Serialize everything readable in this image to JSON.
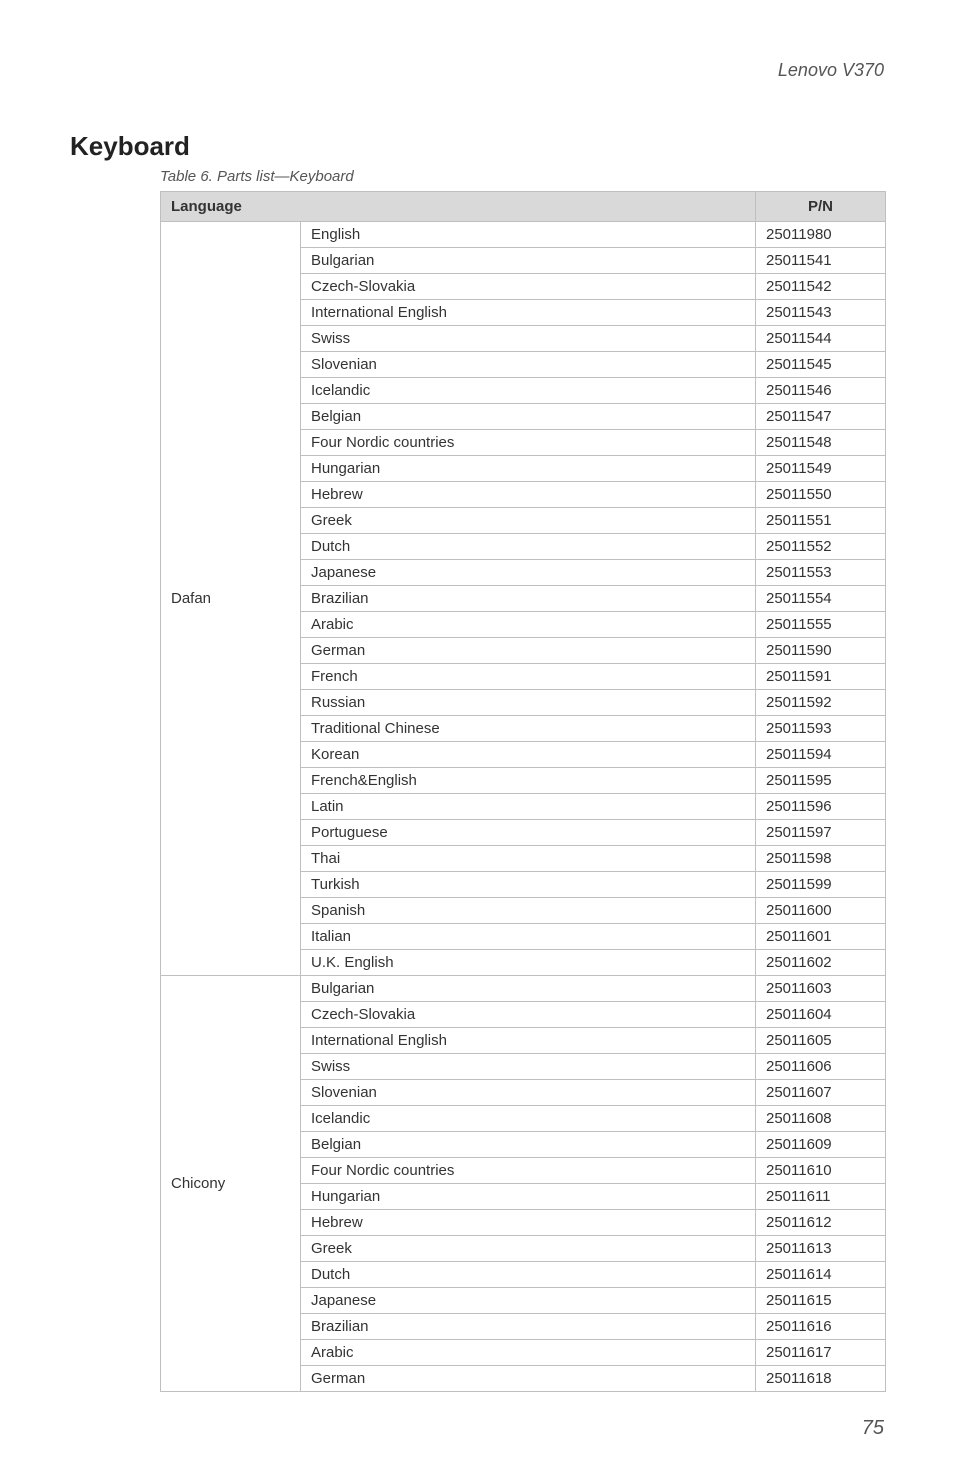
{
  "doc_header": "Lenovo V370",
  "section_title": "Keyboard",
  "table_caption": "Table 6. Parts list—Keyboard",
  "columns": {
    "language": "Language",
    "pn": "P/N"
  },
  "groups": [
    {
      "brand": "Dafan",
      "rows": [
        {
          "lang": "English",
          "pn": "25011980"
        },
        {
          "lang": "Bulgarian",
          "pn": "25011541"
        },
        {
          "lang": "Czech-Slovakia",
          "pn": "25011542"
        },
        {
          "lang": "International English",
          "pn": "25011543"
        },
        {
          "lang": "Swiss",
          "pn": "25011544"
        },
        {
          "lang": "Slovenian",
          "pn": "25011545"
        },
        {
          "lang": "Icelandic",
          "pn": "25011546"
        },
        {
          "lang": "Belgian",
          "pn": "25011547"
        },
        {
          "lang": "Four Nordic countries",
          "pn": "25011548"
        },
        {
          "lang": "Hungarian",
          "pn": "25011549"
        },
        {
          "lang": "Hebrew",
          "pn": "25011550"
        },
        {
          "lang": "Greek",
          "pn": "25011551"
        },
        {
          "lang": "Dutch",
          "pn": "25011552"
        },
        {
          "lang": "Japanese",
          "pn": "25011553"
        },
        {
          "lang": "Brazilian",
          "pn": "25011554"
        },
        {
          "lang": "Arabic",
          "pn": "25011555"
        },
        {
          "lang": "German",
          "pn": "25011590"
        },
        {
          "lang": "French",
          "pn": "25011591"
        },
        {
          "lang": "Russian",
          "pn": "25011592"
        },
        {
          "lang": "Traditional Chinese",
          "pn": "25011593"
        },
        {
          "lang": "Korean",
          "pn": "25011594"
        },
        {
          "lang": "French&English",
          "pn": "25011595"
        },
        {
          "lang": "Latin",
          "pn": "25011596"
        },
        {
          "lang": "Portuguese",
          "pn": "25011597"
        },
        {
          "lang": "Thai",
          "pn": "25011598"
        },
        {
          "lang": "Turkish",
          "pn": "25011599"
        },
        {
          "lang": "Spanish",
          "pn": "25011600"
        },
        {
          "lang": "Italian",
          "pn": "25011601"
        },
        {
          "lang": "U.K. English",
          "pn": "25011602"
        }
      ]
    },
    {
      "brand": "Chicony",
      "rows": [
        {
          "lang": "Bulgarian",
          "pn": "25011603"
        },
        {
          "lang": "Czech-Slovakia",
          "pn": "25011604"
        },
        {
          "lang": "International English",
          "pn": "25011605"
        },
        {
          "lang": "Swiss",
          "pn": "25011606"
        },
        {
          "lang": "Slovenian",
          "pn": "25011607"
        },
        {
          "lang": "Icelandic",
          "pn": "25011608"
        },
        {
          "lang": "Belgian",
          "pn": "25011609"
        },
        {
          "lang": "Four Nordic countries",
          "pn": "25011610"
        },
        {
          "lang": "Hungarian",
          "pn": "25011611"
        },
        {
          "lang": "Hebrew",
          "pn": "25011612"
        },
        {
          "lang": "Greek",
          "pn": "25011613"
        },
        {
          "lang": "Dutch",
          "pn": "25011614"
        },
        {
          "lang": "Japanese",
          "pn": "25011615"
        },
        {
          "lang": "Brazilian",
          "pn": "25011616"
        },
        {
          "lang": "Arabic",
          "pn": "25011617"
        },
        {
          "lang": "German",
          "pn": "25011618"
        }
      ]
    }
  ],
  "page_number": "75",
  "style": {
    "header_bg": "#d9d9d9",
    "border_color": "#bfbfbf",
    "text_color": "#333333",
    "muted_color": "#555555",
    "body_font_size": 15,
    "title_font_size": 26
  }
}
